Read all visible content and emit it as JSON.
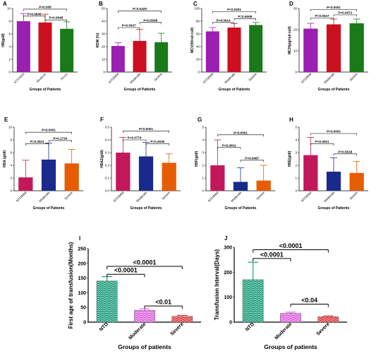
{
  "chart_data": [
    {
      "panel": "A",
      "type": "bar",
      "categories": [
        "NTD/Mild",
        "Moderate",
        "Severe"
      ],
      "values": [
        8.0,
        7.8,
        6.8
      ],
      "errors": [
        1.2,
        1.3,
        1.1
      ],
      "colors": [
        "#9b1fb0",
        "#cc1020",
        "#1a7a1a"
      ],
      "ylabel": "HB(g/dl)",
      "xlabel": "Groups of Patients",
      "ylim": [
        0,
        10
      ],
      "yticks": [
        "0",
        "2",
        "4",
        "6",
        "8",
        "10"
      ],
      "serif_x": true,
      "pvalues": [
        {
          "label": "P=0.6648",
          "from": 0,
          "to": 1,
          "level": 8.8
        },
        {
          "label": "P=0.0048",
          "from": 1,
          "to": 2,
          "level": 8.2
        },
        {
          "label": "P=0.008",
          "from": 0,
          "to": 2,
          "level": 9.9
        }
      ]
    },
    {
      "panel": "B",
      "type": "bar",
      "categories": [
        "NTD/Mild",
        "Moderate",
        "Severe"
      ],
      "values": [
        20.5,
        24.5,
        23.5
      ],
      "errors": [
        2.5,
        9.0,
        7.0
      ],
      "colors": [
        "#9b1fb0",
        "#cc1020",
        "#1a7a1a"
      ],
      "ylabel": "RDW (%)",
      "xlabel": "Groups of Patients",
      "ylim": [
        0,
        50
      ],
      "yticks": [
        "0",
        "10",
        "20",
        "30",
        "40",
        "50"
      ],
      "pvalues": [
        {
          "label": "P=0.0037",
          "from": 0,
          "to": 1,
          "level": 35
        },
        {
          "label": "P=0.5008",
          "from": 1,
          "to": 2,
          "level": 39
        },
        {
          "label": "P=0.0429",
          "from": 0,
          "to": 2,
          "level": 48
        }
      ]
    },
    {
      "panel": "C",
      "type": "bar",
      "categories": [
        "NTD/Mild",
        "Moderate",
        "Severe"
      ],
      "values": [
        64,
        70,
        74
      ],
      "errors": [
        6,
        6,
        4
      ],
      "colors": [
        "#9b1fb0",
        "#cc1020",
        "#1a7a1a"
      ],
      "ylabel": "MCV(fl/red cell)",
      "xlabel": "Groups of Patients",
      "ylim": [
        0,
        100
      ],
      "yticks": [
        "0",
        "20",
        "40",
        "60",
        "80",
        "100"
      ],
      "pvalues": [
        {
          "label": "P=0.0014",
          "from": 0,
          "to": 1,
          "level": 78
        },
        {
          "label": "P=0.5008",
          "from": 1,
          "to": 2,
          "level": 84
        },
        {
          "label": "P<0.0001",
          "from": 0,
          "to": 2,
          "level": 95
        }
      ]
    },
    {
      "panel": "D",
      "type": "bar",
      "categories": [
        "NTD/Mild",
        "Moderate",
        "Severe"
      ],
      "values": [
        20.5,
        22.5,
        23.0
      ],
      "errors": [
        2.5,
        2.5,
        2.0
      ],
      "colors": [
        "#9b1fb0",
        "#cc1020",
        "#1a7a1a"
      ],
      "ylabel": "MCH(pg/red cell)",
      "xlabel": "Groups of Patients",
      "ylim": [
        0,
        30
      ],
      "yticks": [
        "0",
        "10",
        "20",
        "30"
      ],
      "pvalues": [
        {
          "label": "P=0.0047",
          "from": 0,
          "to": 1,
          "level": 25.5
        },
        {
          "label": "P=0.0972",
          "from": 1,
          "to": 2,
          "level": 27.0
        },
        {
          "label": "P<0.0001",
          "from": 0,
          "to": 2,
          "level": 29.5
        }
      ]
    },
    {
      "panel": "E",
      "type": "bar",
      "categories": [
        "NTD/Mild",
        "Moderate",
        "Severe"
      ],
      "values": [
        2.1,
        4.9,
        4.3
      ],
      "errors": [
        2.7,
        2.6,
        2.2
      ],
      "colors": [
        "#c2185b",
        "#1a2a8c",
        "#e65c00"
      ],
      "ylabel": "HBA (g/dl)",
      "xlabel": "Groups of Patients",
      "ylim": [
        0,
        10
      ],
      "yticks": [
        "0",
        "2",
        "4",
        "6",
        "8",
        "10"
      ],
      "pvalues": [
        {
          "label": "P=0.0001",
          "from": 0,
          "to": 1,
          "level": 7.4
        },
        {
          "label": "P=0.1734",
          "from": 1,
          "to": 2,
          "level": 7.9
        },
        {
          "label": "P<0.0001",
          "from": 0,
          "to": 2,
          "level": 9.2
        }
      ]
    },
    {
      "panel": "F",
      "type": "bar",
      "categories": [
        "NTD/Mild",
        "Moderate",
        "Severe"
      ],
      "values": [
        0.3,
        0.27,
        0.22
      ],
      "errors": [
        0.12,
        0.11,
        0.07
      ],
      "colors": [
        "#c2185b",
        "#1a2a8c",
        "#e65c00"
      ],
      "ylabel": "HBA2(g/dl)",
      "xlabel": "Groups of Patients",
      "ylim": [
        0,
        0.5
      ],
      "yticks": [
        "0.0",
        "0.1",
        "0.2",
        "0.3",
        "0.4",
        "0.5"
      ],
      "pvalues": [
        {
          "label": "P=0.0776",
          "from": 0,
          "to": 1,
          "level": 0.4
        },
        {
          "label": "P=0.0035",
          "from": 1,
          "to": 2,
          "level": 0.37
        },
        {
          "label": "P<0.0001",
          "from": 0,
          "to": 2,
          "level": 0.47
        }
      ]
    },
    {
      "panel": "G",
      "type": "bar",
      "categories": [
        "NTD/Mild",
        "Moderate",
        "Severe"
      ],
      "values": [
        2.0,
        0.7,
        0.8
      ],
      "errors": [
        2.0,
        1.1,
        1.2
      ],
      "colors": [
        "#c2185b",
        "#1a2a8c",
        "#e65c00"
      ],
      "ylabel": "HBF(g/dl)",
      "xlabel": "Groups of Patients",
      "ylim": [
        0,
        5
      ],
      "yticks": [
        "0",
        "1",
        "2",
        "3",
        "4",
        "5"
      ],
      "pvalues": [
        {
          "label": "P<0.0001",
          "from": 0,
          "to": 1,
          "level": 3.4
        },
        {
          "label": "P=0.0487",
          "from": 1,
          "to": 2,
          "level": 2.4
        },
        {
          "label": "P<0.0001",
          "from": 0,
          "to": 2,
          "level": 4.4
        }
      ]
    },
    {
      "panel": "H",
      "type": "bar",
      "categories": [
        "NTD/Mild",
        "Moderate",
        "Severe"
      ],
      "values": [
        2.8,
        1.5,
        1.4
      ],
      "errors": [
        1.4,
        1.1,
        0.9
      ],
      "colors": [
        "#c2185b",
        "#1a2a8c",
        "#e65c00"
      ],
      "ylabel": "HBE(g/dl)",
      "xlabel": "Groups of Patients",
      "ylim": [
        0,
        5
      ],
      "yticks": [
        "0",
        "1",
        "2",
        "3",
        "4",
        "5"
      ],
      "pvalues": [
        {
          "label": "P<0.0001",
          "from": 0,
          "to": 1,
          "level": 3.7
        },
        {
          "label": "P=0.5618",
          "from": 1,
          "to": 2,
          "level": 2.9
        },
        {
          "label": "P<0.0001",
          "from": 0,
          "to": 2,
          "level": 4.5
        }
      ]
    },
    {
      "panel": "I",
      "type": "bar",
      "big": true,
      "categories": [
        "NTD",
        "Moderate",
        "Severe"
      ],
      "values": [
        140,
        40,
        20
      ],
      "errors": [
        15,
        5,
        3
      ],
      "colors": [
        "#1f9e7e",
        "#e066e0",
        "#e04040"
      ],
      "hatched": true,
      "ylabel": "First age of transfusion(Months)",
      "xlabel": "Groups of patients",
      "ylim": [
        0,
        250
      ],
      "yticks": [
        "0",
        "50",
        "100",
        "150",
        "200",
        "250"
      ],
      "pvalues": [
        {
          "label": "<0.0001",
          "from": 0,
          "to": 1,
          "level": 163
        },
        {
          "label": "<0.01",
          "from": 1,
          "to": 2,
          "level": 55
        },
        {
          "label": "<0.0001",
          "from": 0,
          "to": 2,
          "level": 190
        }
      ]
    },
    {
      "panel": "J",
      "type": "bar",
      "big": true,
      "categories": [
        "NTD",
        "Moderate",
        "Severe"
      ],
      "values": [
        170,
        35,
        22
      ],
      "errors": [
        70,
        5,
        3
      ],
      "colors": [
        "#1f9e7e",
        "#e066e0",
        "#e04040"
      ],
      "hatched": true,
      "ylabel": "Transfusion Interval(Days)",
      "xlabel": "Groups of patients",
      "ylim": [
        0,
        300
      ],
      "yticks": [
        "0",
        "100",
        "200",
        "300"
      ],
      "pvalues": [
        {
          "label": "<0.0001",
          "from": 0,
          "to": 1,
          "level": 255
        },
        {
          "label": "<0.04",
          "from": 1,
          "to": 2,
          "level": 72
        },
        {
          "label": "<0.0001",
          "from": 0,
          "to": 2,
          "level": 290
        }
      ]
    }
  ]
}
